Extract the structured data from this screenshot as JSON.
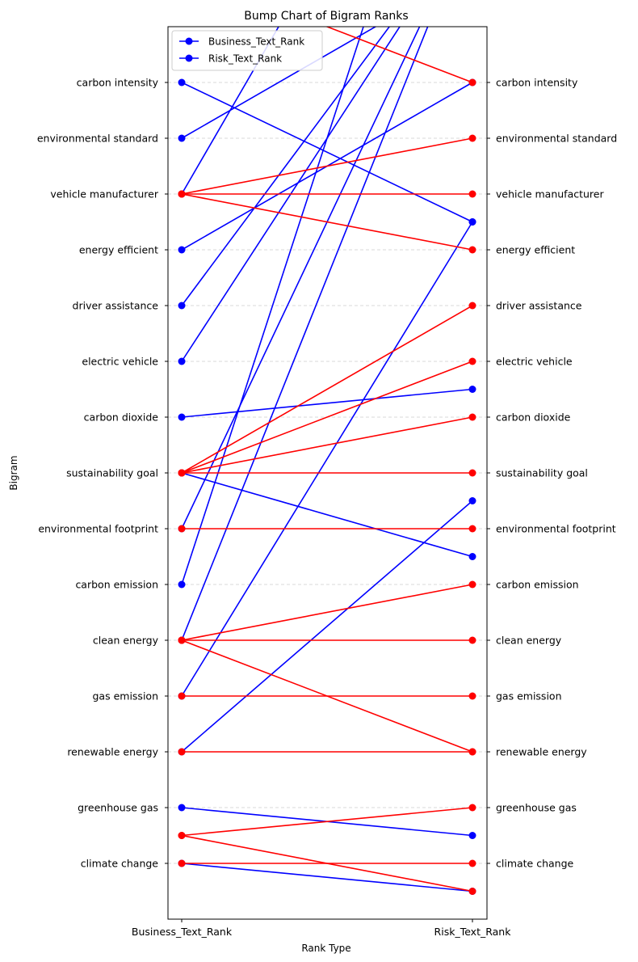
{
  "chart_data": {
    "type": "line",
    "title": "Bump Chart of Bigram Ranks",
    "xlabel": "Rank Type",
    "ylabel": "Bigram",
    "categories": [
      "Business_Text_Rank",
      "Risk_Text_Rank"
    ],
    "y_ticks": [
      "climate change",
      "greenhouse gas",
      "renewable energy",
      "gas emission",
      "clean energy",
      "carbon emission",
      "environmental footprint",
      "sustainability goal",
      "carbon dioxide",
      "electric vehicle",
      "driver assistance",
      "energy efficient",
      "vehicle manufacturer",
      "environmental standard",
      "carbon intensity"
    ],
    "ylim": [
      0,
      16
    ],
    "grid": "horizontal dashed",
    "legend": {
      "placement": "top-left",
      "entries": [
        "Business_Text_Rank",
        "Risk_Text_Rank"
      ]
    },
    "series": [
      {
        "color": "#0000ff",
        "segments": [
          [
            1,
            0.5
          ],
          [
            2,
            1.5
          ],
          [
            3,
            7.5
          ],
          [
            4,
            12.5
          ],
          [
            5,
            18
          ],
          [
            6,
            22
          ],
          [
            7,
            18
          ],
          [
            8,
            6.5
          ],
          [
            9,
            9.5
          ],
          [
            10,
            18
          ],
          [
            11,
            18
          ],
          [
            12,
            15
          ],
          [
            13,
            22
          ],
          [
            14,
            17
          ],
          [
            15,
            12.5
          ]
        ]
      },
      {
        "color": "#ff0000",
        "segments": [
          [
            1,
            1
          ],
          [
            1.5,
            0.5
          ],
          [
            1.5,
            2
          ],
          [
            3,
            3
          ],
          [
            4,
            4
          ],
          [
            5,
            5
          ],
          [
            5,
            3
          ],
          [
            5,
            6
          ],
          [
            7,
            7
          ],
          [
            8,
            8
          ],
          [
            8,
            9
          ],
          [
            8,
            10
          ],
          [
            8,
            11
          ],
          [
            13,
            12
          ],
          [
            13,
            13
          ],
          [
            13,
            14
          ],
          [
            17,
            15
          ]
        ]
      }
    ]
  }
}
